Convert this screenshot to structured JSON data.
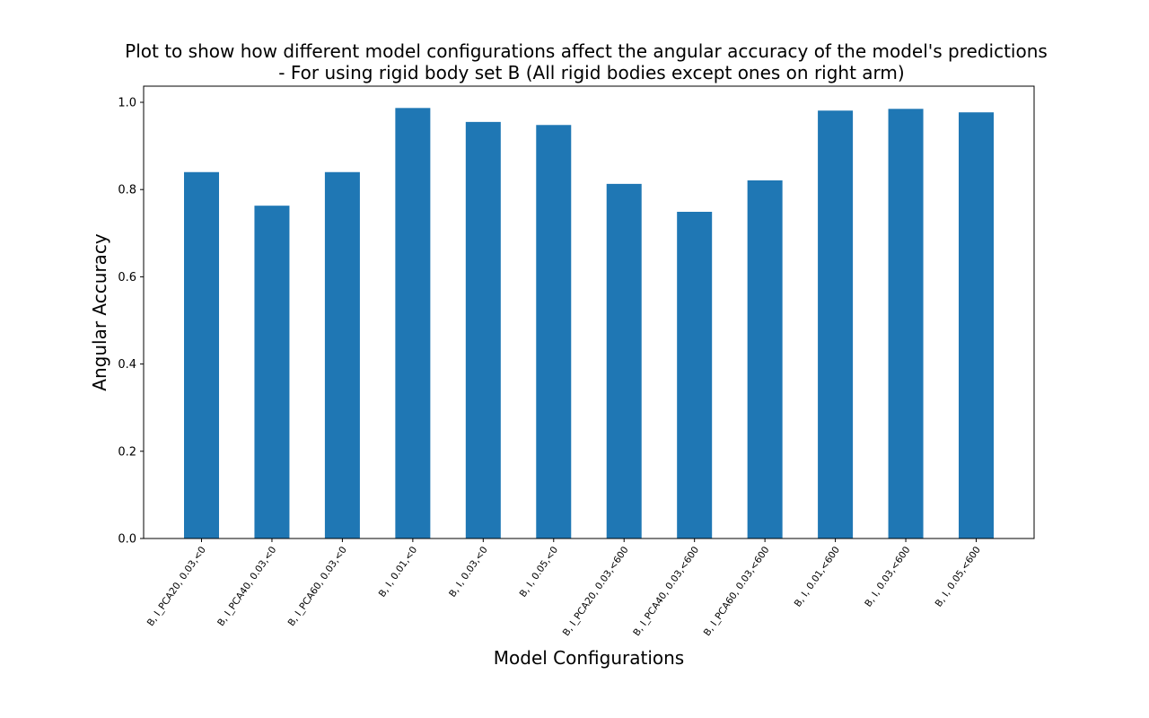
{
  "chart_data": {
    "type": "bar",
    "title": "Plot to show how different model configurations affect the angular accuracy of the model's predictions",
    "subtitle": "- For using rigid body set B (All rigid bodies except ones on right arm)",
    "xlabel": "Model Configurations",
    "ylabel": "Angular Accuracy",
    "ylim": [
      0,
      1.0
    ],
    "yticks": [
      "0.0",
      "0.2",
      "0.4",
      "0.6",
      "0.8",
      "1.0"
    ],
    "grid": false,
    "bar_color": "#1f77b4",
    "categories": [
      "B, I_PCA20, 0.03,<0",
      "B, I_PCA40, 0.03,<0",
      "B, I_PCA60, 0.03,<0",
      "B, I, 0.01,<0",
      "B, I, 0.03,<0",
      "B, I, 0.05,<0",
      "B, I_PCA20, 0.03,<600",
      "B, I_PCA40, 0.03,<600",
      "B, I_PCA60, 0.03,<600",
      "B, I, 0.01,<600",
      "B, I, 0.03,<600",
      "B, I, 0.05,<600"
    ],
    "values": [
      0.84,
      0.763,
      0.84,
      0.987,
      0.955,
      0.948,
      0.813,
      0.749,
      0.821,
      0.981,
      0.985,
      0.977
    ]
  }
}
